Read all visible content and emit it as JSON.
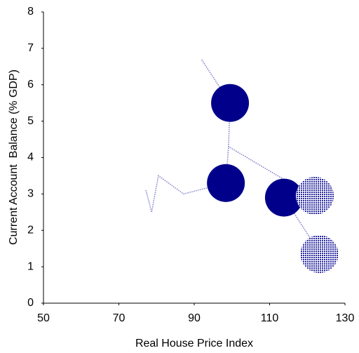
{
  "chart_data": {
    "type": "scatter",
    "x_label": "Real House Price Index",
    "y_label": "Current Account  Balance (% GDP)",
    "xlim": [
      50,
      130
    ],
    "xticks": [
      50,
      70,
      90,
      110,
      130
    ],
    "ylim": [
      0,
      8
    ],
    "yticks": [
      0,
      1,
      2,
      3,
      4,
      5,
      6,
      7,
      8
    ],
    "grid": false,
    "series": [
      {
        "color": "#7b7bc8",
        "style": "dotted-line",
        "x": [
          77.2,
          78.7,
          80.5,
          87.2,
          98.4,
          99.1,
          99.5,
          91.9,
          null,
          99.1,
          113.8,
          122.0,
          null,
          113.8,
          123.2
        ],
        "values": [
          3.1,
          2.5,
          3.5,
          3.0,
          3.3,
          4.3,
          5.5,
          6.7,
          null,
          4.3,
          3.4,
          2.95,
          null,
          2.9,
          1.4
        ]
      },
      {
        "color": "#00008b",
        "style": "solid-bubble",
        "x": [
          99.5,
          98.4,
          113.8
        ],
        "values": [
          5.5,
          3.3,
          2.9
        ]
      },
      {
        "color": "#2a2aa0",
        "style": "hatched-bubble",
        "x": [
          122.0,
          123.2
        ],
        "values": [
          2.95,
          1.35
        ]
      }
    ]
  }
}
